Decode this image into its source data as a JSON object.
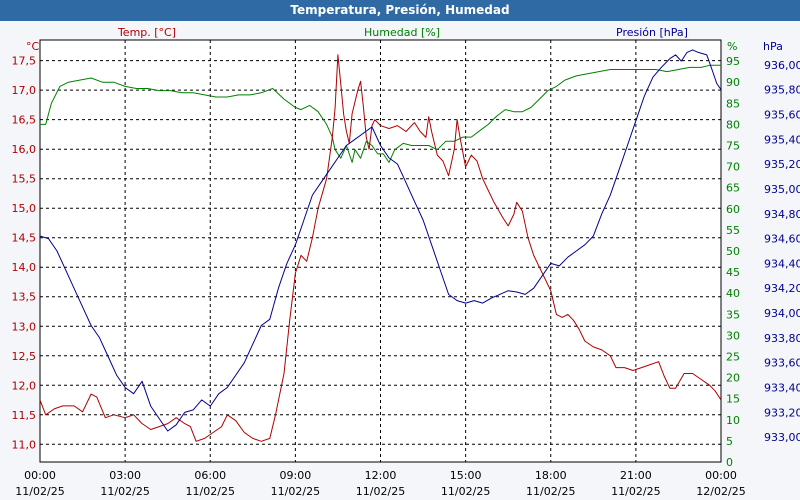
{
  "chart_data": {
    "type": "line",
    "title": "Temperatura, Presión, Humedad",
    "legend": {
      "temp": {
        "label": "Temp. [°C]",
        "color": "#b00000"
      },
      "hum": {
        "label": "Humedad [%]",
        "color": "#008000"
      },
      "pres": {
        "label": "Presión [hPa]",
        "color": "#000090"
      }
    },
    "units": {
      "temp": "°C",
      "hum": "%",
      "pres": "hPa"
    },
    "x_ticks": [
      {
        "time": "00:00",
        "date": "11/02/25"
      },
      {
        "time": "03:00",
        "date": "11/02/25"
      },
      {
        "time": "06:00",
        "date": "11/02/25"
      },
      {
        "time": "09:00",
        "date": "11/02/25"
      },
      {
        "time": "12:00",
        "date": "11/02/25"
      },
      {
        "time": "15:00",
        "date": "11/02/25"
      },
      {
        "time": "18:00",
        "date": "11/02/25"
      },
      {
        "time": "21:00",
        "date": "11/02/25"
      },
      {
        "time": "00:00",
        "date": "12/02/25"
      }
    ],
    "x_range_hours": [
      0,
      24
    ],
    "temp_axis": {
      "min": 10.7,
      "max": 17.85,
      "ticks": [
        "11,0",
        "11,5",
        "12,0",
        "12,5",
        "13,0",
        "13,5",
        "14,0",
        "14,5",
        "15,0",
        "15,5",
        "16,0",
        "16,5",
        "17,0",
        "17,5"
      ]
    },
    "hum_axis": {
      "min": 0,
      "max": 100,
      "ticks": [
        "0",
        "5",
        "10",
        "15",
        "20",
        "25",
        "30",
        "35",
        "40",
        "45",
        "50",
        "55",
        "60",
        "65",
        "70",
        "75",
        "80",
        "85",
        "90",
        "95"
      ]
    },
    "pres_axis": {
      "min": 932.8,
      "max": 936.2,
      "ticks": [
        "933,00",
        "933,20",
        "933,40",
        "933,60",
        "933,80",
        "934,00",
        "934,20",
        "934,40",
        "934,60",
        "934,80",
        "935,00",
        "935,20",
        "935,40",
        "935,60",
        "935,80",
        "936,00"
      ]
    },
    "series": [
      {
        "name": "Temp. [°C]",
        "key": "temp",
        "color": "#b00000",
        "points": [
          [
            0,
            11.75
          ],
          [
            0.2,
            11.5
          ],
          [
            0.5,
            11.6
          ],
          [
            0.8,
            11.65
          ],
          [
            1.2,
            11.65
          ],
          [
            1.5,
            11.55
          ],
          [
            1.8,
            11.85
          ],
          [
            2.0,
            11.8
          ],
          [
            2.3,
            11.45
          ],
          [
            2.6,
            11.5
          ],
          [
            3.0,
            11.45
          ],
          [
            3.3,
            11.5
          ],
          [
            3.6,
            11.35
          ],
          [
            3.9,
            11.25
          ],
          [
            4.2,
            11.3
          ],
          [
            4.5,
            11.35
          ],
          [
            4.8,
            11.45
          ],
          [
            5.1,
            11.35
          ],
          [
            5.3,
            11.3
          ],
          [
            5.5,
            11.05
          ],
          [
            5.8,
            11.1
          ],
          [
            6.1,
            11.2
          ],
          [
            6.4,
            11.3
          ],
          [
            6.6,
            11.5
          ],
          [
            6.9,
            11.4
          ],
          [
            7.2,
            11.2
          ],
          [
            7.5,
            11.1
          ],
          [
            7.8,
            11.05
          ],
          [
            8.1,
            11.1
          ],
          [
            8.3,
            11.5
          ],
          [
            8.6,
            12.2
          ],
          [
            8.8,
            13.1
          ],
          [
            9.0,
            13.9
          ],
          [
            9.2,
            14.2
          ],
          [
            9.4,
            14.1
          ],
          [
            9.6,
            14.5
          ],
          [
            9.8,
            15.0
          ],
          [
            10.1,
            15.5
          ],
          [
            10.3,
            16.2
          ],
          [
            10.4,
            16.7
          ],
          [
            10.5,
            17.6
          ],
          [
            10.6,
            17.1
          ],
          [
            10.7,
            16.6
          ],
          [
            10.8,
            16.3
          ],
          [
            10.9,
            16.1
          ],
          [
            11.0,
            16.6
          ],
          [
            11.2,
            17.0
          ],
          [
            11.3,
            17.15
          ],
          [
            11.4,
            16.7
          ],
          [
            11.5,
            16.2
          ],
          [
            11.6,
            16.0
          ],
          [
            11.7,
            16.4
          ],
          [
            11.8,
            16.5
          ],
          [
            12.0,
            16.4
          ],
          [
            12.3,
            16.35
          ],
          [
            12.6,
            16.4
          ],
          [
            12.9,
            16.3
          ],
          [
            13.2,
            16.45
          ],
          [
            13.4,
            16.3
          ],
          [
            13.6,
            16.2
          ],
          [
            13.7,
            16.55
          ],
          [
            13.8,
            16.3
          ],
          [
            14.0,
            15.9
          ],
          [
            14.2,
            15.8
          ],
          [
            14.4,
            15.55
          ],
          [
            14.6,
            16.0
          ],
          [
            14.7,
            16.5
          ],
          [
            14.8,
            16.2
          ],
          [
            15.0,
            15.7
          ],
          [
            15.2,
            15.9
          ],
          [
            15.4,
            15.8
          ],
          [
            15.6,
            15.5
          ],
          [
            15.8,
            15.3
          ],
          [
            16.0,
            15.1
          ],
          [
            16.3,
            14.85
          ],
          [
            16.5,
            14.7
          ],
          [
            16.7,
            14.9
          ],
          [
            16.8,
            15.1
          ],
          [
            17.0,
            14.95
          ],
          [
            17.2,
            14.5
          ],
          [
            17.4,
            14.2
          ],
          [
            17.6,
            14.0
          ],
          [
            17.8,
            13.8
          ],
          [
            18.0,
            13.6
          ],
          [
            18.2,
            13.2
          ],
          [
            18.4,
            13.15
          ],
          [
            18.6,
            13.2
          ],
          [
            18.8,
            13.1
          ],
          [
            19.0,
            12.95
          ],
          [
            19.2,
            12.75
          ],
          [
            19.5,
            12.65
          ],
          [
            19.8,
            12.6
          ],
          [
            20.1,
            12.5
          ],
          [
            20.3,
            12.3
          ],
          [
            20.6,
            12.3
          ],
          [
            20.9,
            12.25
          ],
          [
            21.2,
            12.3
          ],
          [
            21.5,
            12.35
          ],
          [
            21.8,
            12.4
          ],
          [
            22.0,
            12.15
          ],
          [
            22.2,
            11.95
          ],
          [
            22.4,
            11.95
          ],
          [
            22.7,
            12.2
          ],
          [
            23.0,
            12.2
          ],
          [
            23.3,
            12.1
          ],
          [
            23.6,
            12.0
          ],
          [
            23.8,
            11.9
          ],
          [
            24.0,
            11.75
          ]
        ]
      },
      {
        "name": "Humedad [%]",
        "key": "hum",
        "color": "#008000",
        "points": [
          [
            0,
            80
          ],
          [
            0.2,
            80
          ],
          [
            0.4,
            85
          ],
          [
            0.7,
            89
          ],
          [
            1.0,
            90
          ],
          [
            1.4,
            90.5
          ],
          [
            1.8,
            91
          ],
          [
            2.2,
            90
          ],
          [
            2.6,
            90
          ],
          [
            3.0,
            89
          ],
          [
            3.4,
            88.5
          ],
          [
            3.8,
            88.5
          ],
          [
            4.2,
            88
          ],
          [
            4.6,
            88
          ],
          [
            5.0,
            87.5
          ],
          [
            5.4,
            87.5
          ],
          [
            5.8,
            87
          ],
          [
            6.2,
            86.5
          ],
          [
            6.6,
            86.5
          ],
          [
            7.0,
            87
          ],
          [
            7.4,
            87
          ],
          [
            7.8,
            87.5
          ],
          [
            8.2,
            88.5
          ],
          [
            8.6,
            86
          ],
          [
            9.0,
            84
          ],
          [
            9.2,
            83.5
          ],
          [
            9.5,
            84.5
          ],
          [
            9.8,
            83
          ],
          [
            10.1,
            80
          ],
          [
            10.3,
            77
          ],
          [
            10.4,
            74
          ],
          [
            10.6,
            72
          ],
          [
            10.8,
            75
          ],
          [
            11.0,
            71
          ],
          [
            11.1,
            74
          ],
          [
            11.3,
            72
          ],
          [
            11.5,
            76
          ],
          [
            11.7,
            75
          ],
          [
            11.9,
            73
          ],
          [
            12.1,
            73
          ],
          [
            12.3,
            71
          ],
          [
            12.5,
            74
          ],
          [
            12.8,
            75.5
          ],
          [
            13.1,
            75
          ],
          [
            13.4,
            75
          ],
          [
            13.7,
            75
          ],
          [
            14.0,
            74
          ],
          [
            14.3,
            76
          ],
          [
            14.6,
            76
          ],
          [
            14.9,
            77
          ],
          [
            15.2,
            77
          ],
          [
            15.5,
            78.5
          ],
          [
            15.8,
            80
          ],
          [
            16.1,
            82
          ],
          [
            16.4,
            83.5
          ],
          [
            16.7,
            83
          ],
          [
            17.0,
            83
          ],
          [
            17.3,
            84
          ],
          [
            17.6,
            86
          ],
          [
            17.9,
            88
          ],
          [
            18.2,
            89
          ],
          [
            18.5,
            90.5
          ],
          [
            18.9,
            91.5
          ],
          [
            19.3,
            92
          ],
          [
            19.7,
            92.5
          ],
          [
            20.1,
            93
          ],
          [
            20.5,
            93
          ],
          [
            20.9,
            93
          ],
          [
            21.3,
            93
          ],
          [
            21.7,
            93
          ],
          [
            22.1,
            92.5
          ],
          [
            22.5,
            93
          ],
          [
            22.9,
            93.5
          ],
          [
            23.3,
            93.5
          ],
          [
            23.6,
            94
          ],
          [
            23.9,
            94
          ],
          [
            24.0,
            94
          ]
        ]
      },
      {
        "name": "Presión [hPa]",
        "key": "pres",
        "color": "#000090",
        "points": [
          [
            0,
            934.62
          ],
          [
            0.3,
            934.6
          ],
          [
            0.6,
            934.5
          ],
          [
            0.9,
            934.35
          ],
          [
            1.2,
            934.2
          ],
          [
            1.5,
            934.05
          ],
          [
            1.8,
            933.9
          ],
          [
            2.1,
            933.8
          ],
          [
            2.4,
            933.65
          ],
          [
            2.7,
            933.5
          ],
          [
            3.0,
            933.4
          ],
          [
            3.3,
            933.35
          ],
          [
            3.6,
            933.45
          ],
          [
            3.9,
            933.25
          ],
          [
            4.2,
            933.15
          ],
          [
            4.5,
            933.05
          ],
          [
            4.8,
            933.1
          ],
          [
            5.1,
            933.2
          ],
          [
            5.4,
            933.22
          ],
          [
            5.7,
            933.3
          ],
          [
            6.0,
            933.25
          ],
          [
            6.3,
            933.35
          ],
          [
            6.6,
            933.4
          ],
          [
            6.9,
            933.5
          ],
          [
            7.2,
            933.6
          ],
          [
            7.5,
            933.75
          ],
          [
            7.8,
            933.9
          ],
          [
            8.1,
            933.95
          ],
          [
            8.4,
            934.2
          ],
          [
            8.7,
            934.4
          ],
          [
            9.0,
            934.55
          ],
          [
            9.3,
            934.75
          ],
          [
            9.6,
            934.95
          ],
          [
            9.9,
            935.05
          ],
          [
            10.2,
            935.15
          ],
          [
            10.5,
            935.25
          ],
          [
            10.8,
            935.35
          ],
          [
            11.1,
            935.4
          ],
          [
            11.4,
            935.45
          ],
          [
            11.7,
            935.5
          ],
          [
            12.0,
            935.35
          ],
          [
            12.3,
            935.25
          ],
          [
            12.6,
            935.2
          ],
          [
            12.9,
            935.05
          ],
          [
            13.2,
            934.9
          ],
          [
            13.5,
            934.75
          ],
          [
            13.8,
            934.55
          ],
          [
            14.1,
            934.35
          ],
          [
            14.4,
            934.15
          ],
          [
            14.7,
            934.1
          ],
          [
            15.0,
            934.08
          ],
          [
            15.3,
            934.1
          ],
          [
            15.6,
            934.08
          ],
          [
            15.9,
            934.12
          ],
          [
            16.2,
            934.15
          ],
          [
            16.5,
            934.18
          ],
          [
            16.8,
            934.17
          ],
          [
            17.1,
            934.15
          ],
          [
            17.4,
            934.2
          ],
          [
            17.7,
            934.3
          ],
          [
            18.0,
            934.4
          ],
          [
            18.3,
            934.38
          ],
          [
            18.6,
            934.45
          ],
          [
            18.9,
            934.5
          ],
          [
            19.2,
            934.55
          ],
          [
            19.5,
            934.62
          ],
          [
            19.8,
            934.8
          ],
          [
            20.1,
            934.95
          ],
          [
            20.4,
            935.15
          ],
          [
            20.7,
            935.35
          ],
          [
            21.0,
            935.55
          ],
          [
            21.3,
            935.75
          ],
          [
            21.6,
            935.9
          ],
          [
            21.9,
            935.98
          ],
          [
            22.2,
            936.05
          ],
          [
            22.4,
            936.08
          ],
          [
            22.6,
            936.03
          ],
          [
            22.8,
            936.1
          ],
          [
            23.0,
            936.12
          ],
          [
            23.2,
            936.1
          ],
          [
            23.5,
            936.08
          ],
          [
            23.7,
            935.95
          ],
          [
            23.85,
            935.85
          ],
          [
            24.0,
            935.8
          ]
        ]
      }
    ]
  }
}
